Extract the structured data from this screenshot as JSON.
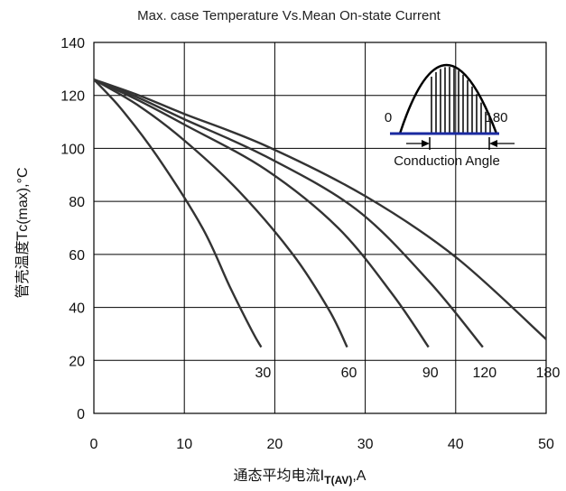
{
  "chart_data": {
    "type": "line",
    "title": "Max. case Temperature Vs.Mean On-state Current",
    "xlabel_main": "通态平均电流I",
    "xlabel_sub": "T(AV)",
    "xlabel_unit": ",A",
    "ylabel_main": "管壳温度T",
    "ylabel_sub": "c(max)",
    "ylabel_unit": ",°C",
    "xlim": [
      0,
      50
    ],
    "ylim": [
      0,
      140
    ],
    "xticks": [
      0,
      10,
      20,
      30,
      40,
      50
    ],
    "yticks": [
      0,
      20,
      40,
      60,
      80,
      100,
      120,
      140
    ],
    "grid": true,
    "series": [
      {
        "name": "30",
        "x": [
          0,
          3,
          7,
          12,
          15,
          17.5,
          18.5
        ],
        "y": [
          126,
          115,
          97,
          70,
          48,
          31,
          25
        ]
      },
      {
        "name": "60",
        "x": [
          0,
          5,
          10,
          16,
          22,
          26,
          28
        ],
        "y": [
          126,
          116,
          103,
          84,
          60,
          39,
          25
        ]
      },
      {
        "name": "90",
        "x": [
          0,
          5,
          10,
          19,
          27,
          33,
          37
        ],
        "y": [
          126,
          118,
          109,
          92,
          70,
          45,
          25
        ]
      },
      {
        "name": "120",
        "x": [
          0,
          5,
          10,
          19,
          29,
          37,
          43
        ],
        "y": [
          126,
          119,
          111,
          97,
          77,
          50,
          25
        ]
      },
      {
        "name": "180",
        "x": [
          0,
          5,
          10,
          19,
          30,
          40,
          50
        ],
        "y": [
          126,
          120,
          113,
          101,
          82,
          59,
          28
        ]
      }
    ]
  },
  "inset": {
    "start_label": "0",
    "end_label": "180",
    "caption": "Conduction Angle"
  },
  "colors": {
    "curve": "#333333",
    "grid": "#000000",
    "baseline": "#1a2aa0"
  }
}
